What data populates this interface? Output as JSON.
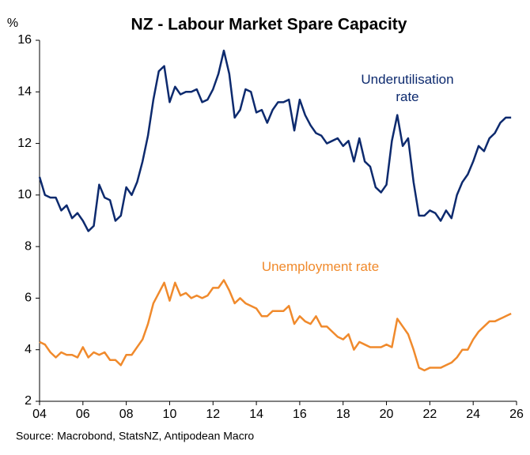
{
  "chart_data": {
    "type": "line",
    "title": "NZ - Labour Market Spare Capacity",
    "y_label": "%",
    "source": "Source: Macrobond, StatsNZ, Antipodean Macro",
    "x": [
      2004,
      2004.25,
      2004.5,
      2004.75,
      2005,
      2005.25,
      2005.5,
      2005.75,
      2006,
      2006.25,
      2006.5,
      2006.75,
      2007,
      2007.25,
      2007.5,
      2007.75,
      2008,
      2008.25,
      2008.5,
      2008.75,
      2009,
      2009.25,
      2009.5,
      2009.75,
      2010,
      2010.25,
      2010.5,
      2010.75,
      2011,
      2011.25,
      2011.5,
      2011.75,
      2012,
      2012.25,
      2012.5,
      2012.75,
      2013,
      2013.25,
      2013.5,
      2013.75,
      2014,
      2014.25,
      2014.5,
      2014.75,
      2015,
      2015.25,
      2015.5,
      2015.75,
      2016,
      2016.25,
      2016.5,
      2016.75,
      2017,
      2017.25,
      2017.5,
      2017.75,
      2018,
      2018.25,
      2018.5,
      2018.75,
      2019,
      2019.25,
      2019.5,
      2019.75,
      2020,
      2020.25,
      2020.5,
      2020.75,
      2021,
      2021.25,
      2021.5,
      2021.75,
      2022,
      2022.25,
      2022.5,
      2022.75,
      2023,
      2023.25,
      2023.5,
      2023.75,
      2024,
      2024.25,
      2024.5,
      2024.75,
      2025,
      2025.25,
      2025.5,
      2025.75
    ],
    "series": [
      {
        "name": "Underutilisation rate",
        "color": "#0d2a6e",
        "values": [
          10.7,
          10.0,
          9.9,
          9.9,
          9.4,
          9.6,
          9.1,
          9.3,
          9.0,
          8.6,
          8.8,
          10.4,
          9.9,
          9.8,
          9.0,
          9.2,
          10.3,
          10.0,
          10.5,
          11.3,
          12.3,
          13.7,
          14.8,
          15.0,
          13.6,
          14.2,
          13.9,
          14.0,
          14.0,
          14.1,
          13.6,
          13.7,
          14.1,
          14.7,
          15.6,
          14.7,
          13.0,
          13.3,
          14.1,
          14.0,
          13.2,
          13.3,
          12.8,
          13.3,
          13.6,
          13.6,
          13.7,
          12.5,
          13.7,
          13.1,
          12.7,
          12.4,
          12.3,
          12.0,
          12.1,
          12.2,
          11.9,
          12.1,
          11.3,
          12.2,
          11.3,
          11.1,
          10.3,
          10.1,
          10.4,
          12.1,
          13.1,
          11.9,
          12.2,
          10.5,
          9.2,
          9.2,
          9.4,
          9.3,
          9.0,
          9.4,
          9.1,
          10.0,
          10.5,
          10.8,
          11.3,
          11.9,
          11.7,
          12.2,
          12.4,
          12.8,
          13.0,
          13.0
        ]
      },
      {
        "name": "Unemployment rate",
        "color": "#f08a2c",
        "values": [
          4.3,
          4.2,
          3.9,
          3.7,
          3.9,
          3.8,
          3.8,
          3.7,
          4.1,
          3.7,
          3.9,
          3.8,
          3.9,
          3.6,
          3.6,
          3.4,
          3.8,
          3.8,
          4.1,
          4.4,
          5.0,
          5.8,
          6.2,
          6.6,
          5.9,
          6.6,
          6.1,
          6.2,
          6.0,
          6.1,
          6.0,
          6.1,
          6.4,
          6.4,
          6.7,
          6.3,
          5.8,
          6.0,
          5.8,
          5.7,
          5.6,
          5.3,
          5.3,
          5.5,
          5.5,
          5.5,
          5.7,
          5.0,
          5.3,
          5.1,
          5.0,
          5.3,
          4.9,
          4.9,
          4.7,
          4.5,
          4.4,
          4.6,
          4.0,
          4.3,
          4.2,
          4.1,
          4.1,
          4.1,
          4.2,
          4.1,
          5.2,
          4.9,
          4.6,
          4.0,
          3.3,
          3.2,
          3.3,
          3.3,
          3.3,
          3.4,
          3.5,
          3.7,
          4.0,
          4.0,
          4.4,
          4.7,
          4.9,
          5.1,
          5.1,
          5.2,
          5.3,
          5.4
        ]
      }
    ],
    "xlim": [
      2004,
      2026
    ],
    "xticks": [
      {
        "value": 2004,
        "label": "04"
      },
      {
        "value": 2006,
        "label": "06"
      },
      {
        "value": 2008,
        "label": "08"
      },
      {
        "value": 2010,
        "label": "10"
      },
      {
        "value": 2012,
        "label": "12"
      },
      {
        "value": 2014,
        "label": "14"
      },
      {
        "value": 2016,
        "label": "16"
      },
      {
        "value": 2018,
        "label": "18"
      },
      {
        "value": 2020,
        "label": "20"
      },
      {
        "value": 2022,
        "label": "22"
      },
      {
        "value": 2024,
        "label": "24"
      },
      {
        "value": 2026,
        "label": "26"
      }
    ],
    "ylim": [
      2,
      16
    ],
    "yticks": [
      2,
      4,
      6,
      8,
      10,
      12,
      14,
      16
    ],
    "grid": false
  }
}
